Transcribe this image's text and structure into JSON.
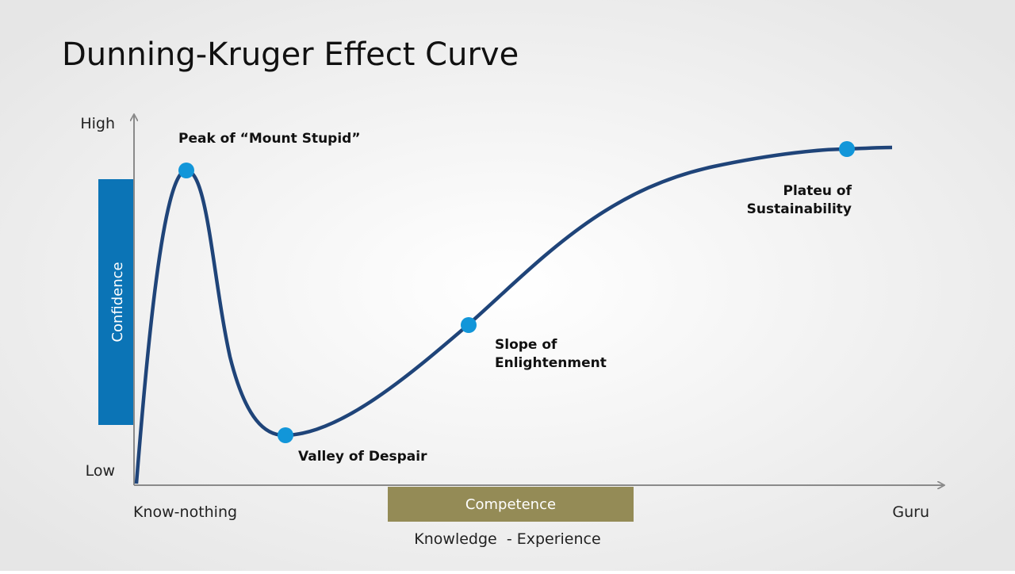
{
  "title": "Dunning-Kruger Effect Curve",
  "y_axis": {
    "high": "High",
    "low": "Low",
    "label": "Confidence"
  },
  "x_axis": {
    "start": "Know-nothing",
    "end": "Guru",
    "label": "Competence",
    "caption": "Knowledge  - Experience"
  },
  "points": [
    {
      "lines": [
        "Peak of “Mount Stupid”"
      ]
    },
    {
      "lines": [
        "Valley of Despair"
      ]
    },
    {
      "lines": [
        "Slope of",
        "Enlightenment"
      ]
    },
    {
      "lines": [
        "Plateu of",
        "Sustainability"
      ]
    }
  ]
}
